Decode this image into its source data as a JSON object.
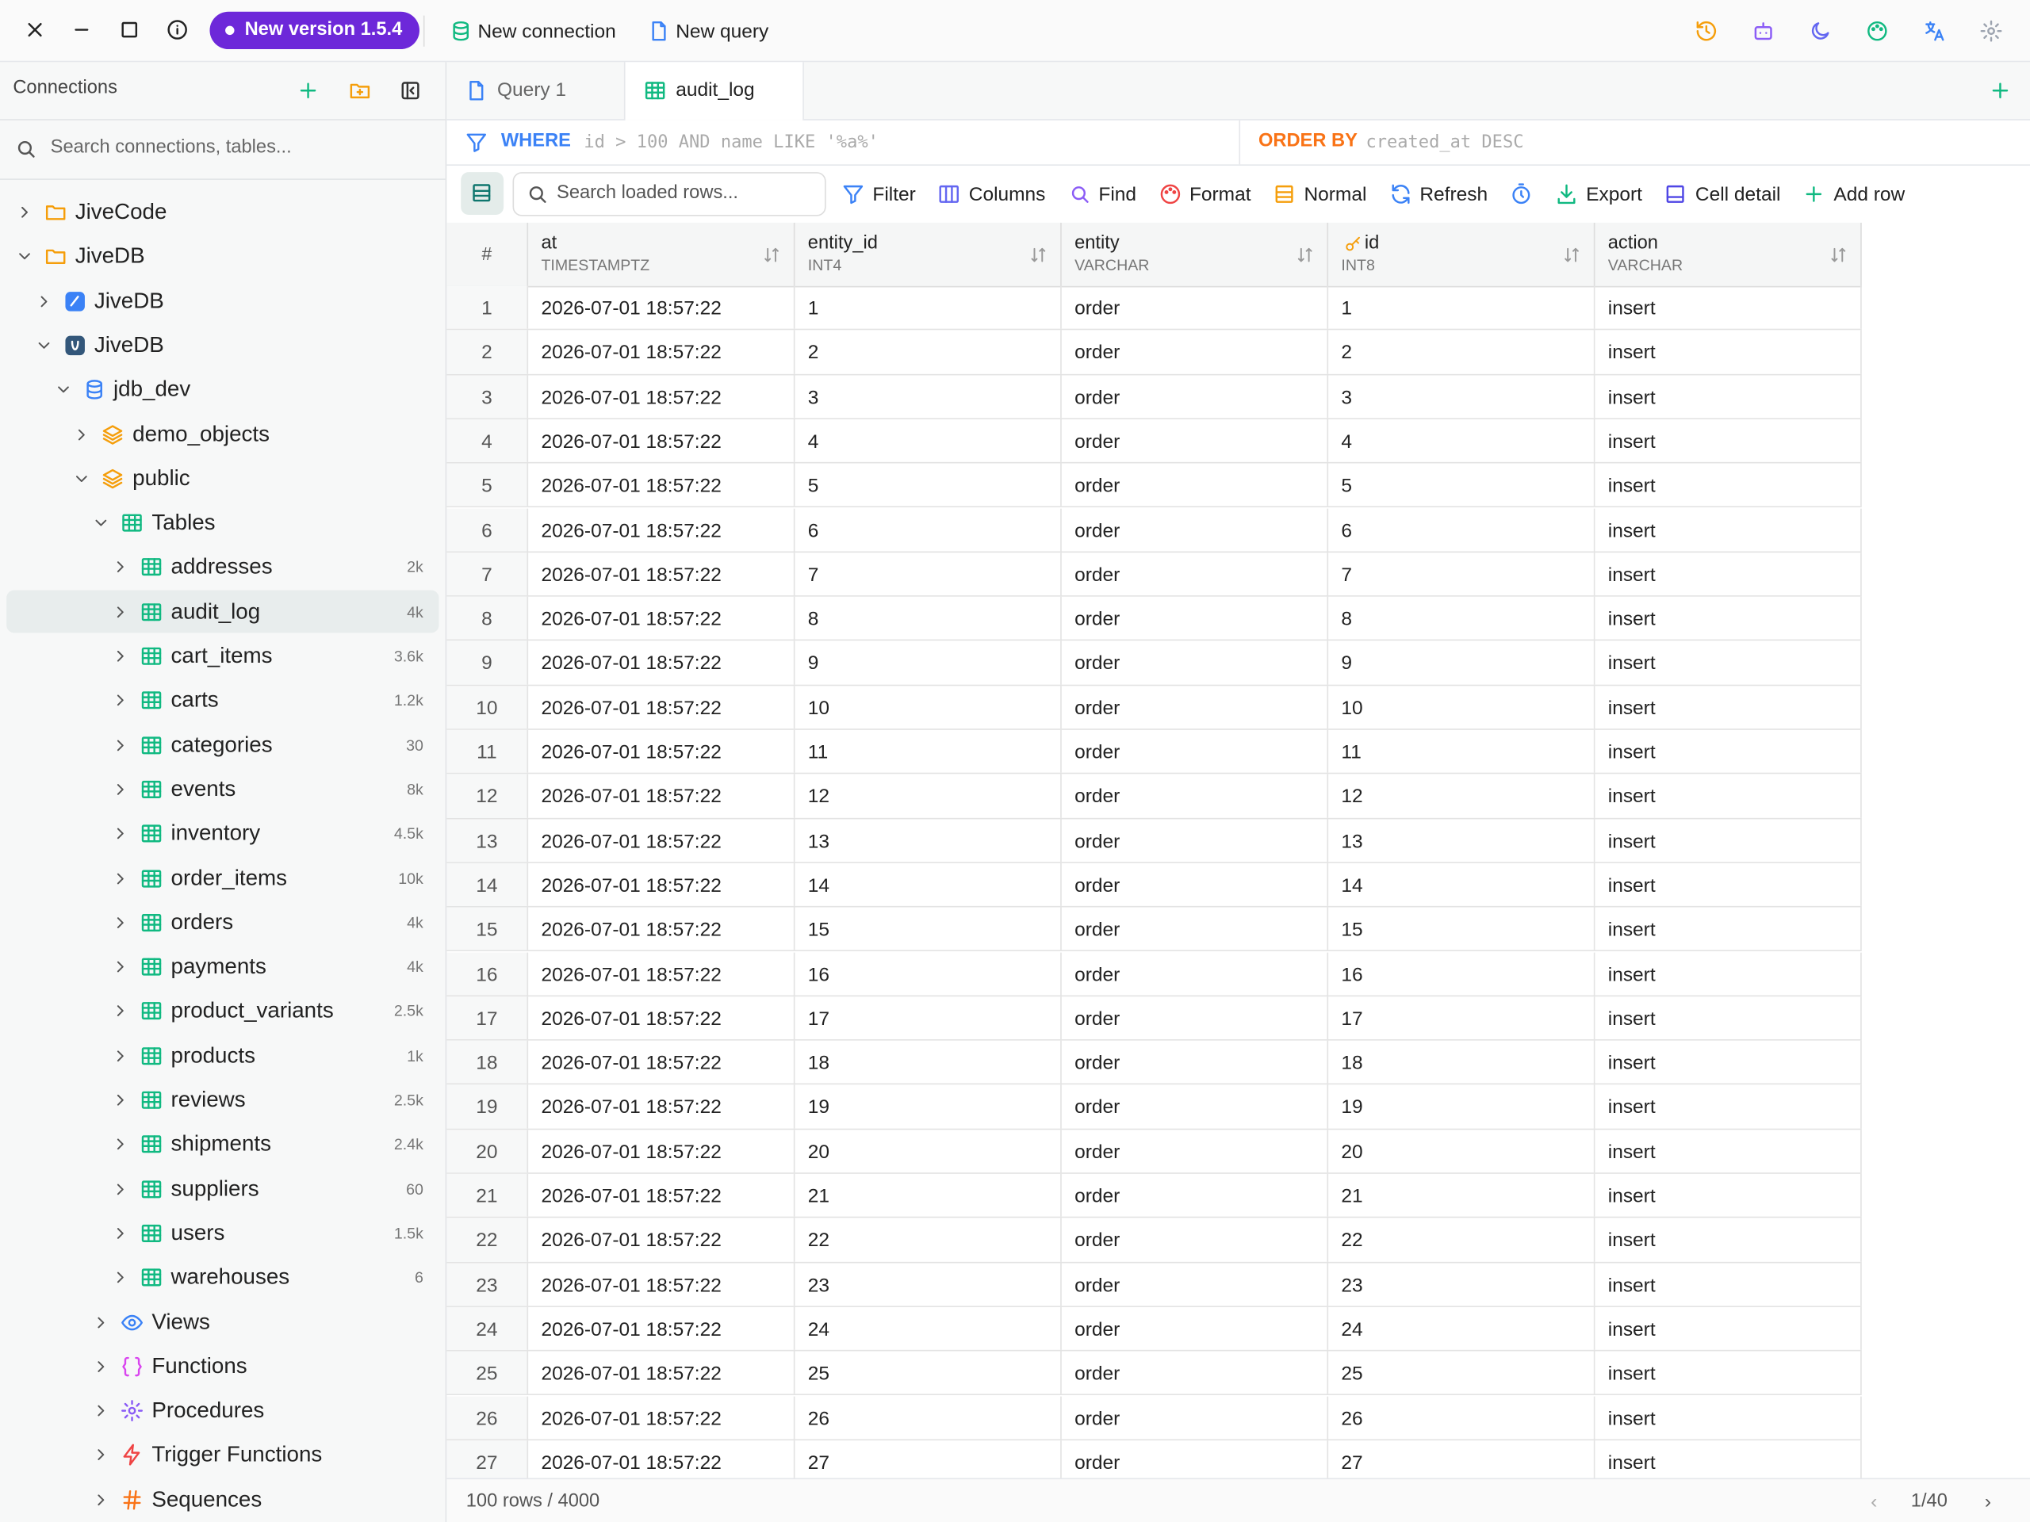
{
  "titlebar": {
    "update_badge": "New version 1.5.4",
    "actions": [
      "New connection",
      "New query"
    ]
  },
  "sidebar": {
    "title": "Connections",
    "search_placeholder": "Search connections, tables...",
    "tree": [
      {
        "label": "JiveCode"
      },
      {
        "label": "JiveDB",
        "children": [
          {
            "label": "JiveDB"
          },
          {
            "label": "JiveDB",
            "children": [
              {
                "label": "jdb_dev",
                "children": [
                  {
                    "label": "demo_objects"
                  },
                  {
                    "label": "public",
                    "children": [
                      {
                        "label": "Tables",
                        "children": [
                          {
                            "label": "addresses",
                            "count": "2k"
                          },
                          {
                            "label": "audit_log",
                            "count": "4k",
                            "selected": true
                          },
                          {
                            "label": "cart_items",
                            "count": "3.6k"
                          },
                          {
                            "label": "carts",
                            "count": "1.2k"
                          },
                          {
                            "label": "categories",
                            "count": "30"
                          },
                          {
                            "label": "events",
                            "count": "8k"
                          },
                          {
                            "label": "inventory",
                            "count": "4.5k"
                          },
                          {
                            "label": "order_items",
                            "count": "10k"
                          },
                          {
                            "label": "orders",
                            "count": "4k"
                          },
                          {
                            "label": "payments",
                            "count": "4k"
                          },
                          {
                            "label": "product_variants",
                            "count": "2.5k"
                          },
                          {
                            "label": "products",
                            "count": "1k"
                          },
                          {
                            "label": "reviews",
                            "count": "2.5k"
                          },
                          {
                            "label": "shipments",
                            "count": "2.4k"
                          },
                          {
                            "label": "suppliers",
                            "count": "60"
                          },
                          {
                            "label": "users",
                            "count": "1.5k"
                          },
                          {
                            "label": "warehouses",
                            "count": "6"
                          }
                        ]
                      },
                      {
                        "label": "Views"
                      },
                      {
                        "label": "Functions"
                      },
                      {
                        "label": "Procedures"
                      },
                      {
                        "label": "Trigger Functions"
                      },
                      {
                        "label": "Sequences"
                      }
                    ]
                  }
                ]
              }
            ]
          }
        ]
      }
    ]
  },
  "tabs": [
    {
      "label": "Query 1"
    },
    {
      "label": "audit_log",
      "active": true
    }
  ],
  "filter": {
    "where_keyword": "WHERE",
    "where_placeholder": "id > 100 AND name LIKE '%a%'",
    "order_keyword": "ORDER BY",
    "order_placeholder": "created_at DESC"
  },
  "toolbar": {
    "search_placeholder": "Search loaded rows...",
    "buttons": [
      "Filter",
      "Columns",
      "Find",
      "Format",
      "Normal",
      "Refresh",
      "Export",
      "Cell detail",
      "Add row"
    ]
  },
  "table": {
    "index_header": "#",
    "columns": [
      {
        "name": "at",
        "type": "TIMESTAMPTZ"
      },
      {
        "name": "entity_id",
        "type": "INT4"
      },
      {
        "name": "entity",
        "type": "VARCHAR"
      },
      {
        "name": "id",
        "type": "INT8",
        "primary_key": true
      },
      {
        "name": "action",
        "type": "VARCHAR"
      }
    ],
    "rows": [
      [
        1,
        "2026-07-01 18:57:22",
        1,
        "order",
        1,
        "insert"
      ],
      [
        2,
        "2026-07-01 18:57:22",
        2,
        "order",
        2,
        "insert"
      ],
      [
        3,
        "2026-07-01 18:57:22",
        3,
        "order",
        3,
        "insert"
      ],
      [
        4,
        "2026-07-01 18:57:22",
        4,
        "order",
        4,
        "insert"
      ],
      [
        5,
        "2026-07-01 18:57:22",
        5,
        "order",
        5,
        "insert"
      ],
      [
        6,
        "2026-07-01 18:57:22",
        6,
        "order",
        6,
        "insert"
      ],
      [
        7,
        "2026-07-01 18:57:22",
        7,
        "order",
        7,
        "insert"
      ],
      [
        8,
        "2026-07-01 18:57:22",
        8,
        "order",
        8,
        "insert"
      ],
      [
        9,
        "2026-07-01 18:57:22",
        9,
        "order",
        9,
        "insert"
      ],
      [
        10,
        "2026-07-01 18:57:22",
        10,
        "order",
        10,
        "insert"
      ],
      [
        11,
        "2026-07-01 18:57:22",
        11,
        "order",
        11,
        "insert"
      ],
      [
        12,
        "2026-07-01 18:57:22",
        12,
        "order",
        12,
        "insert"
      ],
      [
        13,
        "2026-07-01 18:57:22",
        13,
        "order",
        13,
        "insert"
      ],
      [
        14,
        "2026-07-01 18:57:22",
        14,
        "order",
        14,
        "insert"
      ],
      [
        15,
        "2026-07-01 18:57:22",
        15,
        "order",
        15,
        "insert"
      ],
      [
        16,
        "2026-07-01 18:57:22",
        16,
        "order",
        16,
        "insert"
      ],
      [
        17,
        "2026-07-01 18:57:22",
        17,
        "order",
        17,
        "insert"
      ],
      [
        18,
        "2026-07-01 18:57:22",
        18,
        "order",
        18,
        "insert"
      ],
      [
        19,
        "2026-07-01 18:57:22",
        19,
        "order",
        19,
        "insert"
      ],
      [
        20,
        "2026-07-01 18:57:22",
        20,
        "order",
        20,
        "insert"
      ],
      [
        21,
        "2026-07-01 18:57:22",
        21,
        "order",
        21,
        "insert"
      ],
      [
        22,
        "2026-07-01 18:57:22",
        22,
        "order",
        22,
        "insert"
      ],
      [
        23,
        "2026-07-01 18:57:22",
        23,
        "order",
        23,
        "insert"
      ],
      [
        24,
        "2026-07-01 18:57:22",
        24,
        "order",
        24,
        "insert"
      ],
      [
        25,
        "2026-07-01 18:57:22",
        25,
        "order",
        25,
        "insert"
      ],
      [
        26,
        "2026-07-01 18:57:22",
        26,
        "order",
        26,
        "insert"
      ],
      [
        27,
        "2026-07-01 18:57:22",
        27,
        "order",
        27,
        "insert"
      ]
    ]
  },
  "footer": {
    "row_count": "100 rows / 4000",
    "page": "1/40"
  }
}
